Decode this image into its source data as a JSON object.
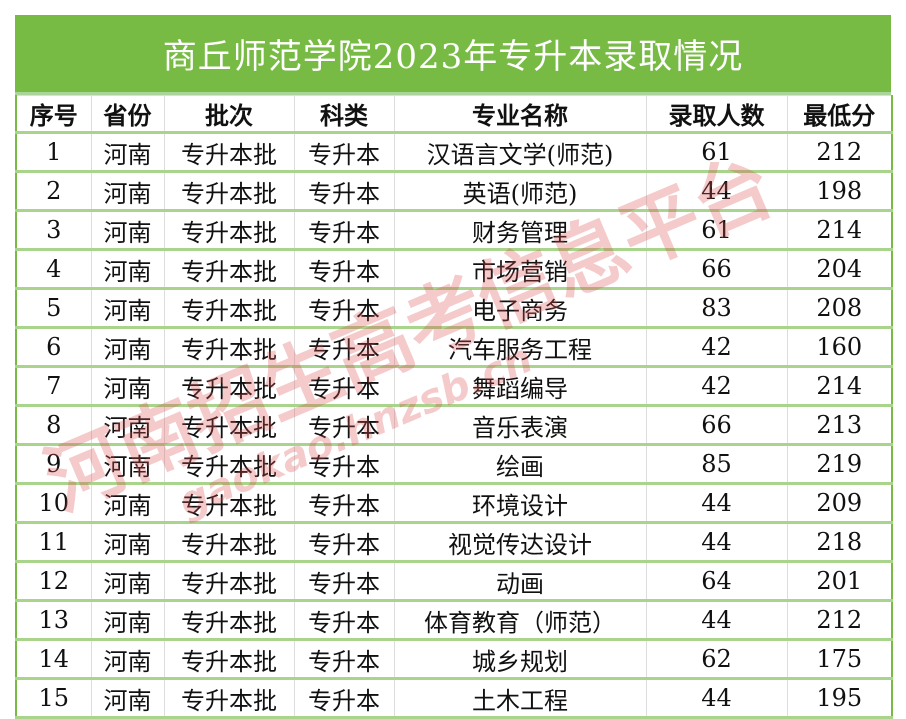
{
  "title": "商丘师范学院2023年专升本录取情况",
  "headers": [
    "序号",
    "省份",
    "批次",
    "科类",
    "专业名称",
    "录取人数",
    "最低分"
  ],
  "rows": [
    [
      "1",
      "河南",
      "专升本批",
      "专升本",
      "汉语言文学(师范)",
      "61",
      "212"
    ],
    [
      "2",
      "河南",
      "专升本批",
      "专升本",
      "英语(师范)",
      "44",
      "198"
    ],
    [
      "3",
      "河南",
      "专升本批",
      "专升本",
      "财务管理",
      "61",
      "214"
    ],
    [
      "4",
      "河南",
      "专升本批",
      "专升本",
      "市场营销",
      "66",
      "204"
    ],
    [
      "5",
      "河南",
      "专升本批",
      "专升本",
      "电子商务",
      "83",
      "208"
    ],
    [
      "6",
      "河南",
      "专升本批",
      "专升本",
      "汽车服务工程",
      "42",
      "160"
    ],
    [
      "7",
      "河南",
      "专升本批",
      "专升本",
      "舞蹈编导",
      "42",
      "214"
    ],
    [
      "8",
      "河南",
      "专升本批",
      "专升本",
      "音乐表演",
      "66",
      "213"
    ],
    [
      "9",
      "河南",
      "专升本批",
      "专升本",
      "绘画",
      "85",
      "219"
    ],
    [
      "10",
      "河南",
      "专升本批",
      "专升本",
      "环境设计",
      "44",
      "209"
    ],
    [
      "11",
      "河南",
      "专升本批",
      "专升本",
      "视觉传达设计",
      "44",
      "218"
    ],
    [
      "12",
      "河南",
      "专升本批",
      "专升本",
      "动画",
      "64",
      "201"
    ],
    [
      "13",
      "河南",
      "专升本批",
      "专升本",
      "体育教育（师范）",
      "44",
      "212"
    ],
    [
      "14",
      "河南",
      "专升本批",
      "专升本",
      "城乡规划",
      "62",
      "175"
    ],
    [
      "15",
      "河南",
      "专升本批",
      "专升本",
      "土木工程",
      "44",
      "195"
    ]
  ],
  "watermark": {
    "text": "河南招生高考信息平台",
    "url": "gaokao.hnzsb.cn"
  },
  "colors": {
    "header_bg": "#77bb44",
    "row_border": "#a8d48c"
  }
}
